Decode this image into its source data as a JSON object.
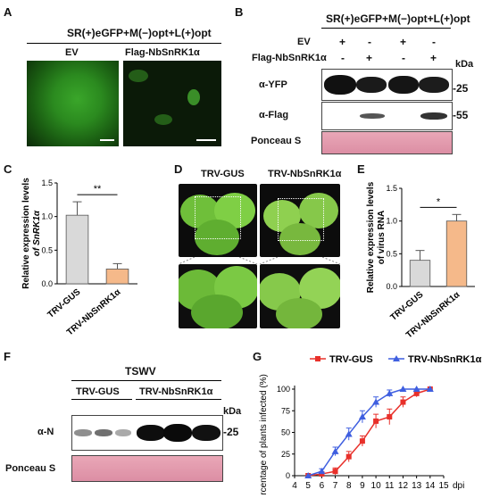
{
  "panels": {
    "A": "A",
    "B": "B",
    "C": "C",
    "D": "D",
    "E": "E",
    "F": "F",
    "G": "G"
  },
  "construct": "SR(+)eGFP+M(−)opt+L(+)opt",
  "panel_a": {
    "ev": "EV",
    "flag": "Flag-NbSnRK1α"
  },
  "panel_b": {
    "row_ev": "EV",
    "row_flag": "Flag-NbSnRK1α",
    "ev_signs": [
      "+",
      "-",
      "+",
      "-"
    ],
    "flag_signs": [
      "-",
      "+",
      "-",
      "+"
    ],
    "kda": "kDa",
    "yfp": "α-YFP",
    "yfp_mw": "-25",
    "flag_ab": "α-Flag",
    "flag_mw": "-55",
    "ponceau": "Ponceau S"
  },
  "panel_d": {
    "tgus": "TRV-GUS",
    "tsnrk": "TRV-NbSnRK1α"
  },
  "panel_f": {
    "title": "TSWV",
    "tgus": "TRV-GUS",
    "tsnrk": "TRV-NbSnRK1α",
    "kda": "kDa",
    "n": "α-N",
    "mw": "-25",
    "ponceau": "Ponceau S"
  },
  "chart_data": [
    {
      "type": "bar",
      "panel": "C",
      "ylabel": "Relative expression levels of SnRK1α",
      "categories": [
        "TRV-GUS",
        "TRV-NbSnRK1α"
      ],
      "values": [
        1.02,
        0.22
      ],
      "errors": [
        0.2,
        0.08
      ],
      "colors": [
        "#d9d9d9",
        "#f5b98a"
      ],
      "ylim": [
        0,
        1.5
      ],
      "yticks": [
        "0.0",
        "0.5",
        "1.0",
        "1.5"
      ],
      "significance": "**"
    },
    {
      "type": "bar",
      "panel": "E",
      "ylabel": "Relative expression levels of virus RNA",
      "categories": [
        "TRV-GUS",
        "TRV-NbSnRK1α"
      ],
      "values": [
        0.4,
        1.0
      ],
      "errors": [
        0.15,
        0.1
      ],
      "colors": [
        "#d9d9d9",
        "#f5b98a"
      ],
      "ylim": [
        0,
        1.5
      ],
      "yticks": [
        "0.0",
        "0.5",
        "1.0",
        "1.5"
      ],
      "significance": "*"
    },
    {
      "type": "line",
      "panel": "G",
      "ylabel": "percentage of plants infected (%)",
      "xlabel": "dpi",
      "x": [
        4,
        5,
        6,
        7,
        8,
        9,
        10,
        11,
        12,
        13,
        14,
        15
      ],
      "xlim": [
        4,
        15
      ],
      "ylim": [
        0,
        100
      ],
      "yticks": [
        0,
        25,
        50,
        75,
        100
      ],
      "series": [
        {
          "name": "TRV-GUS",
          "color": "#e8302a",
          "marker": "square",
          "x": [
            5,
            6,
            7,
            8,
            9,
            10,
            11,
            12,
            13,
            14
          ],
          "y": [
            0,
            2,
            5,
            22,
            40,
            63,
            68,
            85,
            95,
            100
          ],
          "err": [
            0,
            2,
            4,
            6,
            6,
            8,
            9,
            6,
            4,
            0
          ]
        },
        {
          "name": "TRV-NbSnRK1α",
          "color": "#3f5fe0",
          "marker": "triangle",
          "x": [
            5,
            6,
            7,
            8,
            9,
            10,
            11,
            12,
            13,
            14
          ],
          "y": [
            0,
            5,
            28,
            48,
            68,
            85,
            95,
            100,
            100,
            100
          ],
          "err": [
            0,
            3,
            5,
            7,
            7,
            6,
            4,
            0,
            0,
            0
          ]
        }
      ]
    }
  ]
}
